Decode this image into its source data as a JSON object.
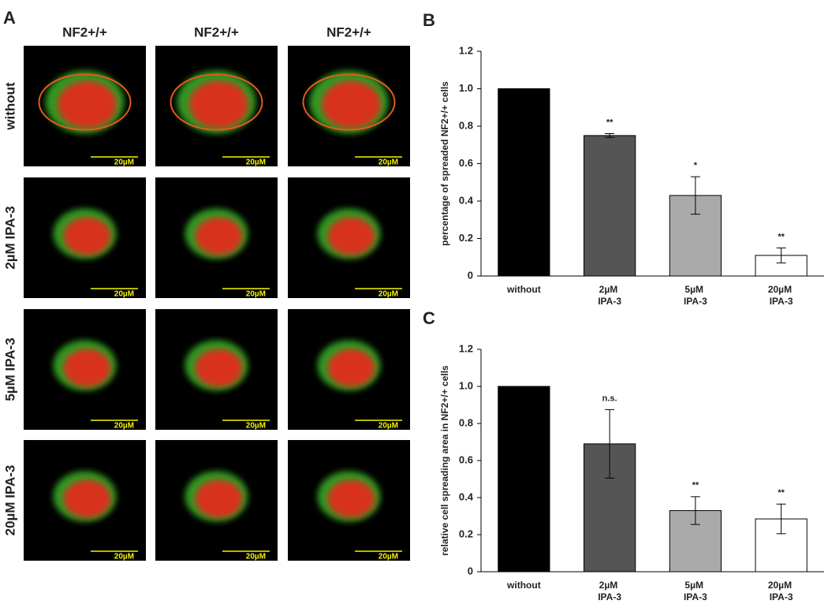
{
  "panel_a": {
    "letter": "A",
    "column_headers": [
      "NF2+/+",
      "NF2+/+",
      "NF2+/+"
    ],
    "row_labels": [
      "without",
      "2µM IPA-3",
      "5µM IPA-3",
      "20µM IPA-3"
    ],
    "scale_bar": "20µM"
  },
  "chart_data": [
    {
      "type": "bar",
      "letter": "B",
      "ylabel": "percentage of spreaded NF2+/+ cells",
      "categories": [
        "without",
        "2µM IPA-3",
        "5µM IPA-3",
        "20µM IPA-3"
      ],
      "values": [
        1.0,
        0.75,
        0.43,
        0.11
      ],
      "errors": [
        0,
        0.01,
        0.1,
        0.04
      ],
      "annotations": [
        null,
        "**",
        "*",
        "**"
      ],
      "colors": [
        "#000000",
        "#555555",
        "#aaaaaa",
        "#ffffff"
      ],
      "ylim": [
        0,
        1.2
      ],
      "yticks": [
        0,
        0.2,
        0.4,
        0.6,
        0.8,
        {
          "value": 1,
          "label": "1.0"
        },
        1.2
      ]
    },
    {
      "type": "bar",
      "letter": "C",
      "ylabel": "relative cell spreading area in NF2+/+ cells",
      "categories": [
        "without",
        "2µM IPA-3",
        "5µM IPA-3",
        "20µM IPA-3"
      ],
      "values": [
        1.0,
        0.69,
        0.33,
        0.285
      ],
      "errors": [
        0,
        0.185,
        0.075,
        0.08
      ],
      "annotations": [
        null,
        "n.s.",
        "**",
        "**"
      ],
      "colors": [
        "#000000",
        "#555555",
        "#aaaaaa",
        "#ffffff"
      ],
      "ylim": [
        0,
        1.2
      ],
      "yticks": [
        0,
        0.2,
        0.4,
        0.6,
        0.8,
        {
          "value": 1,
          "label": "1.0"
        },
        1.2
      ]
    }
  ]
}
